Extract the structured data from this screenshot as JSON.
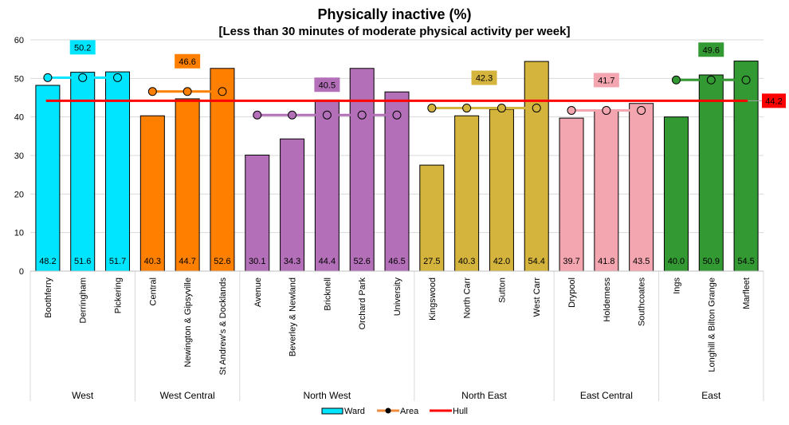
{
  "chart_data": {
    "type": "bar",
    "title": "Physically inactive (%)",
    "subtitle": "[Less than 30 minutes of moderate physical activity per week]",
    "ylim": [
      0,
      60
    ],
    "yticks": [
      0,
      10,
      20,
      30,
      40,
      50,
      60
    ],
    "grid": true,
    "legend_position": "bottom",
    "legend": [
      "Ward",
      "Area",
      "Hull"
    ],
    "hull_value": 44.2,
    "hull_label": "44.2",
    "hull_color": "#FF0000",
    "groups": [
      {
        "name": "West",
        "color": "#00E5FF",
        "area": 50.2,
        "area_label": "50.2",
        "wards": [
          {
            "name": "Boothferry",
            "value": 48.2
          },
          {
            "name": "Derringham",
            "value": 51.6
          },
          {
            "name": "Pickering",
            "value": 51.7
          }
        ]
      },
      {
        "name": "West Central",
        "color": "#FF8000",
        "area": 46.6,
        "area_label": "46.6",
        "wards": [
          {
            "name": "Central",
            "value": 40.3
          },
          {
            "name": "Newington & Gipsyville",
            "value": 44.7
          },
          {
            "name": "St Andrew's & Docklands",
            "value": 52.6
          }
        ]
      },
      {
        "name": "North West",
        "color": "#B36FB8",
        "area": 40.5,
        "area_label": "40.5",
        "wards": [
          {
            "name": "Avenue",
            "value": 30.1
          },
          {
            "name": "Beverley & Newland",
            "value": 34.3
          },
          {
            "name": "Bricknell",
            "value": 44.4
          },
          {
            "name": "Orchard Park",
            "value": 52.6
          },
          {
            "name": "University",
            "value": 46.5
          }
        ]
      },
      {
        "name": "North East",
        "color": "#D4B43C",
        "area": 42.3,
        "area_label": "42.3",
        "wards": [
          {
            "name": "Kingswood",
            "value": 27.5
          },
          {
            "name": "North Carr",
            "value": 40.3
          },
          {
            "name": "Sutton",
            "value": 42.0
          },
          {
            "name": "West Carr",
            "value": 54.4
          }
        ]
      },
      {
        "name": "East Central",
        "color": "#F4A6B0",
        "area": 41.7,
        "area_label": "41.7",
        "wards": [
          {
            "name": "Drypool",
            "value": 39.7
          },
          {
            "name": "Holderness",
            "value": 41.8
          },
          {
            "name": "Southcoates",
            "value": 43.5
          }
        ]
      },
      {
        "name": "East",
        "color": "#339933",
        "area": 49.6,
        "area_label": "49.6",
        "wards": [
          {
            "name": "Ings",
            "value": 40.0
          },
          {
            "name": "Longhill & Bilton Grange",
            "value": 50.9
          },
          {
            "name": "Marfleet",
            "value": 54.5
          }
        ]
      }
    ]
  }
}
